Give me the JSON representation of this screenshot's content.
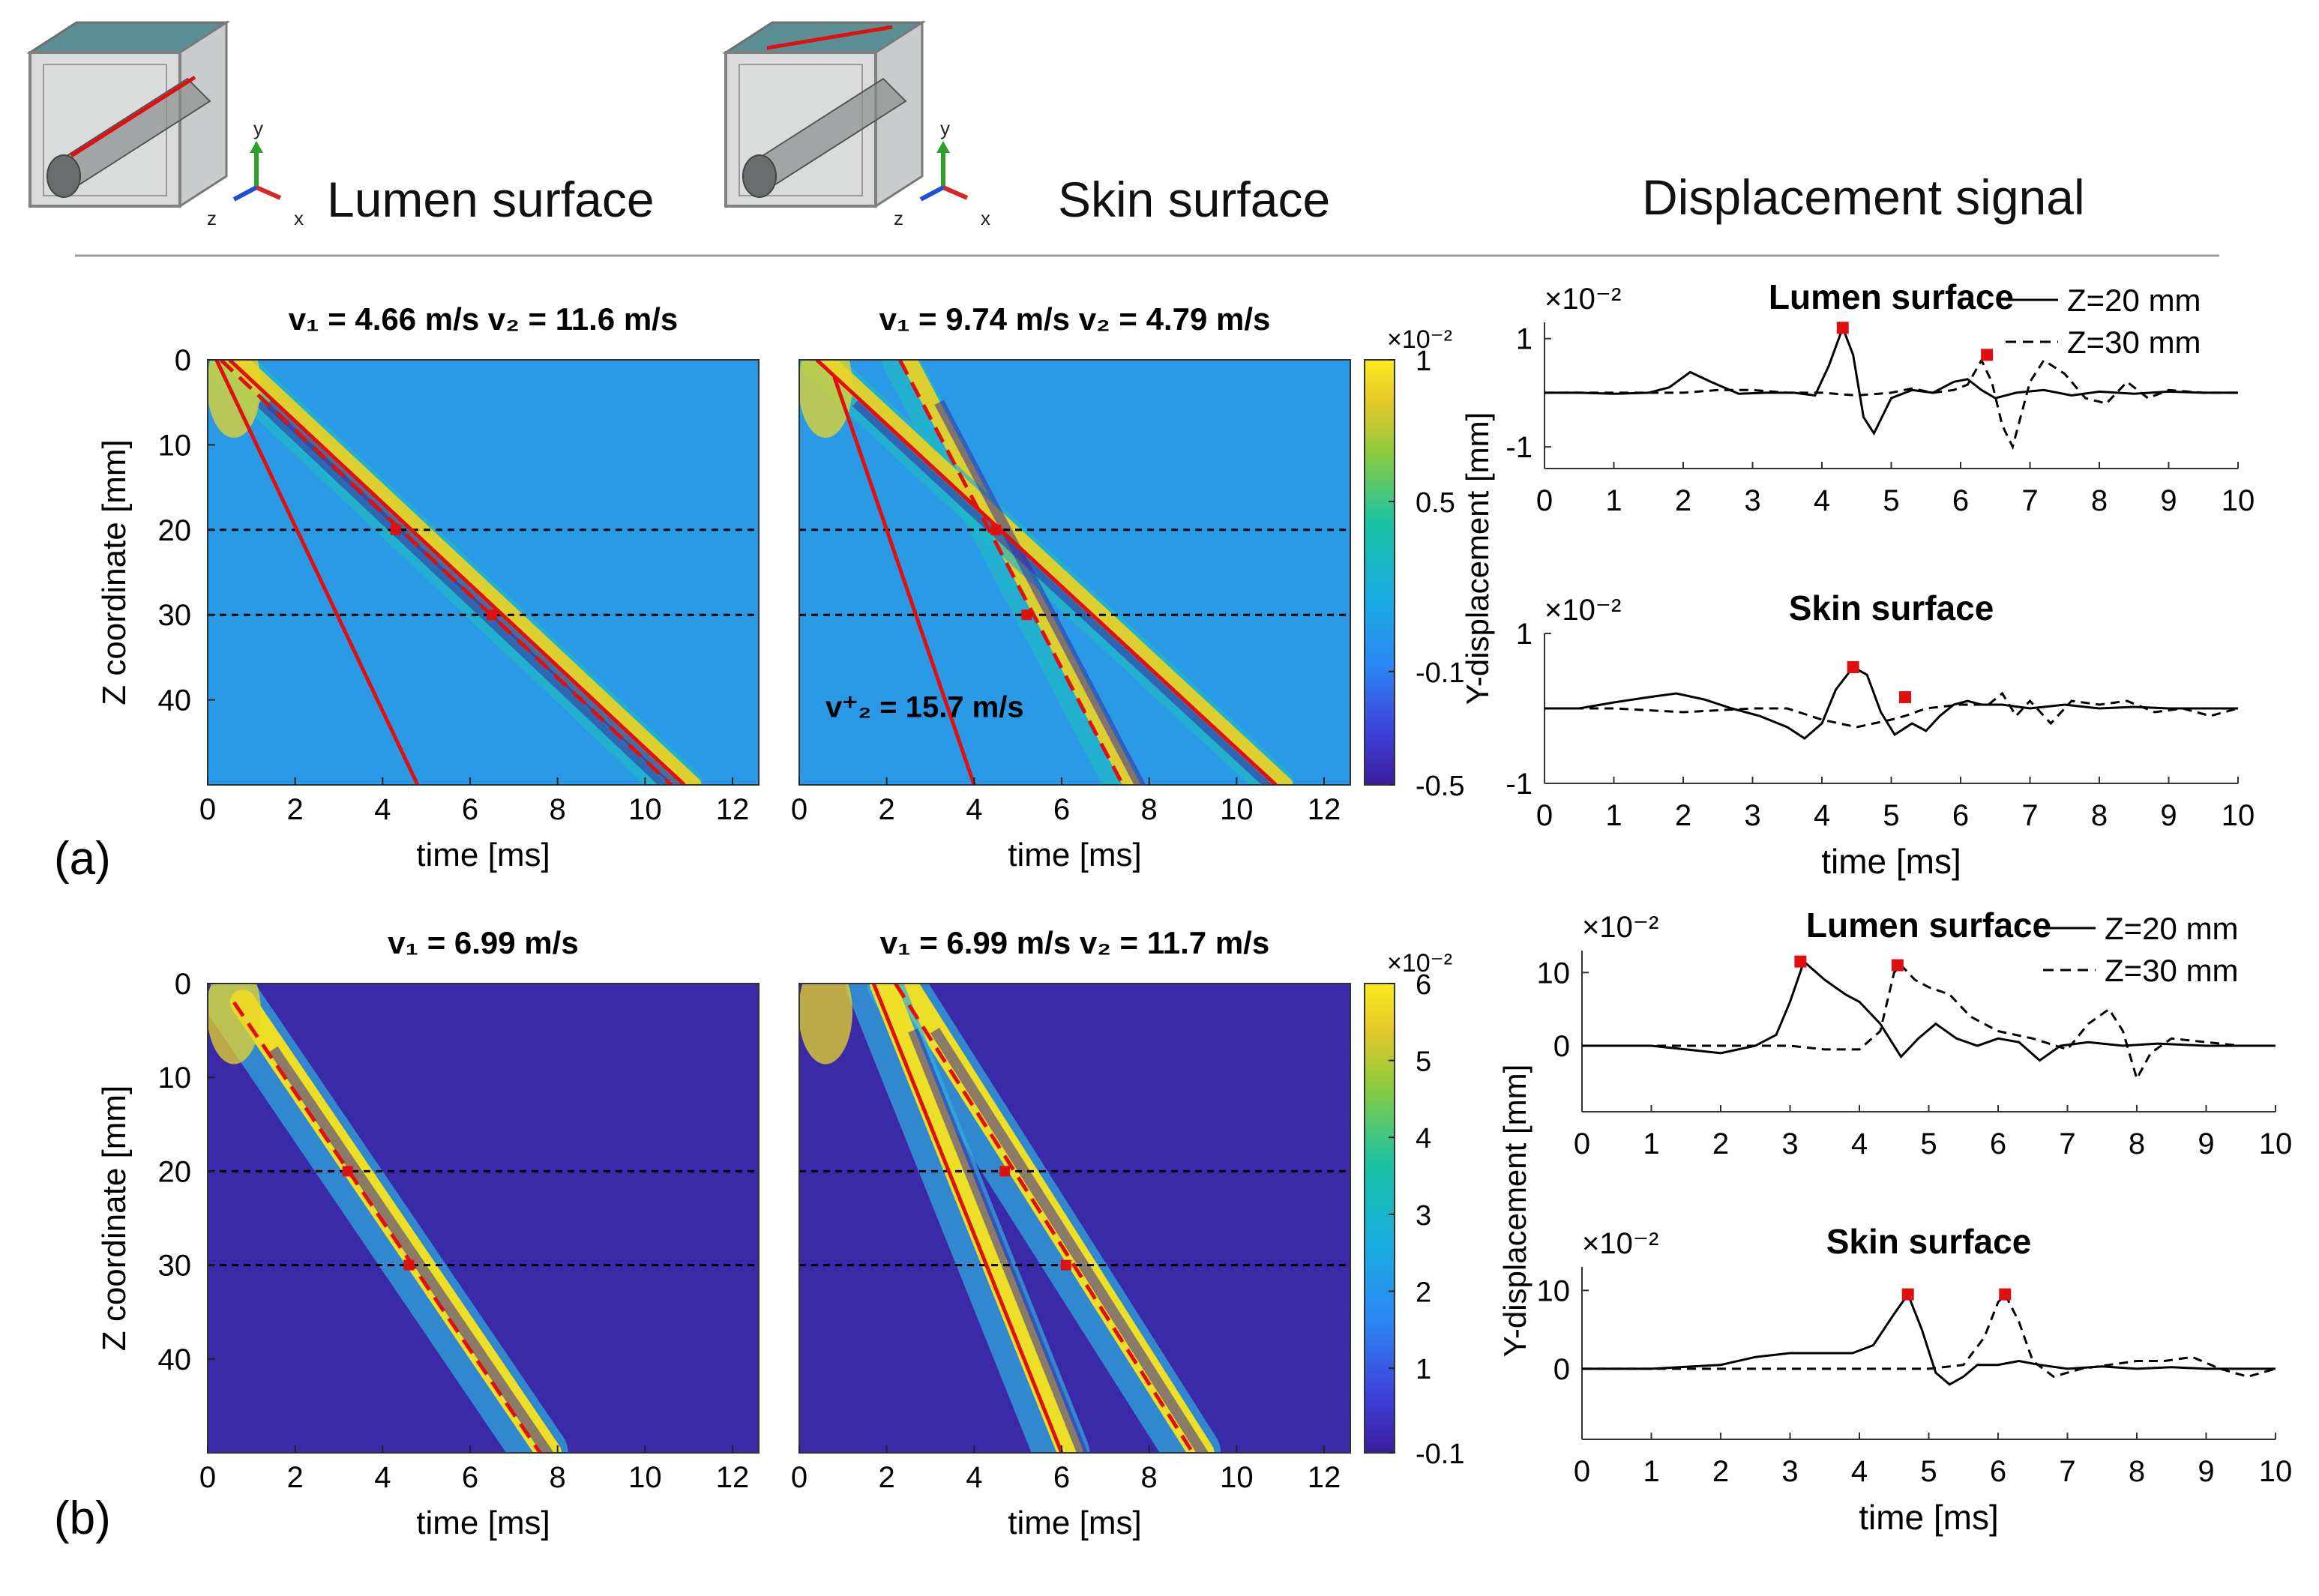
{
  "header": {
    "titles": [
      "Lumen surface",
      "Skin surface",
      "Displacement signal"
    ],
    "axis_letters": [
      "y",
      "z",
      "x"
    ],
    "colors": {
      "x_axis": "#d62728",
      "y_axis": "#2ca02c",
      "z_axis": "#1f4fd6",
      "line": "#e01010"
    }
  },
  "panel_labels": [
    "(a)",
    "(b)"
  ],
  "maps": [
    {
      "id": "a-lumen",
      "title": "v₁ = 4.66 m/s  v₂ = 11.6 m/s",
      "show_y": true,
      "colormap": "a",
      "lines_solid": [
        [
          0.2,
          0,
          4.8,
          50
        ],
        [
          0.5,
          0,
          10.9,
          50
        ]
      ],
      "lines_dashed": [
        [
          0.3,
          0,
          10.6,
          50
        ]
      ],
      "markers": [
        [
          4.3,
          20
        ],
        [
          6.5,
          30
        ]
      ],
      "annotation": ""
    },
    {
      "id": "a-skin",
      "title": "v₁ = 9.74 m/s  v₂ = 4.79 m/s",
      "show_y": false,
      "colormap": "a",
      "lines_solid": [
        [
          0.8,
          2,
          4.0,
          50
        ],
        [
          0.4,
          0,
          10.9,
          50
        ]
      ],
      "lines_dashed": [
        [
          2.3,
          0,
          7.4,
          50
        ]
      ],
      "markers": [
        [
          4.5,
          20
        ],
        [
          5.2,
          30
        ]
      ],
      "annotation": "v⁺₂ = 15.7 m/s"
    },
    {
      "id": "b-lumen",
      "title": "v₁ = 6.99 m/s",
      "show_y": true,
      "colormap": "b",
      "lines_solid": [],
      "lines_dashed": [
        [
          0.6,
          2,
          7.6,
          50
        ]
      ],
      "markers": [
        [
          3.2,
          20
        ],
        [
          4.6,
          30
        ]
      ],
      "annotation": ""
    },
    {
      "id": "b-skin",
      "title": "v₁ = 6.99 m/s  v₂ = 11.7 m/s",
      "show_y": false,
      "colormap": "b",
      "lines_solid": [
        [
          1.7,
          0,
          6.0,
          50
        ]
      ],
      "lines_dashed": [
        [
          2.2,
          0,
          9.0,
          50
        ]
      ],
      "markers": [
        [
          4.7,
          20
        ],
        [
          6.1,
          30
        ]
      ],
      "annotation": ""
    }
  ],
  "map_axes": {
    "xlabel": "time [ms]",
    "ylabel": "Z coordinate [mm]",
    "xticks": [
      0,
      2,
      4,
      6,
      8,
      10,
      12
    ],
    "yticks": [
      0,
      10,
      20,
      30,
      40
    ],
    "xlim": [
      0,
      12.6
    ],
    "ylim": [
      0,
      50
    ],
    "dashed_z": [
      20,
      30
    ]
  },
  "colorbars": [
    {
      "multiplier": "×10⁻²",
      "ticks": [
        {
          "v": 1,
          "t": "1"
        },
        {
          "v": 0.5,
          "t": "0.5"
        },
        {
          "v": -0.1,
          "t": "-0.1"
        },
        {
          "v": -0.5,
          "t": "-0.5"
        }
      ],
      "range": [
        -0.5,
        1
      ],
      "type": "a"
    },
    {
      "multiplier": "×10⁻²",
      "ticks": [
        {
          "v": 6,
          "t": "6"
        },
        {
          "v": 5,
          "t": "5"
        },
        {
          "v": 4,
          "t": "4"
        },
        {
          "v": 3,
          "t": "3"
        },
        {
          "v": 2,
          "t": "2"
        },
        {
          "v": 1,
          "t": "1"
        },
        {
          "v": -0.1,
          "t": "-0.1"
        }
      ],
      "range": [
        -0.1,
        6
      ],
      "type": "b"
    }
  ],
  "chart_data": [
    {
      "type": "line",
      "title": "Lumen surface",
      "multiplier": "×10⁻²",
      "ylabel": "Y-displacement [mm]",
      "xticks": [
        0,
        1,
        2,
        3,
        4,
        5,
        6,
        7,
        8,
        9,
        10
      ],
      "yticks": [
        {
          "v": 1,
          "t": "1"
        },
        {
          "v": -1,
          "t": "-1"
        }
      ],
      "ylim": [
        -1.4,
        1.3
      ],
      "xlabel": "",
      "legend": [
        "Z=20 mm",
        "Z=30 mm"
      ],
      "series": [
        {
          "name": "Z=20 mm",
          "style": "solid",
          "x": [
            0,
            0.5,
            1,
            1.5,
            1.8,
            2.1,
            2.4,
            2.8,
            3.2,
            3.6,
            3.9,
            4.1,
            4.3,
            4.45,
            4.6,
            4.75,
            5,
            5.3,
            5.6,
            5.9,
            6.1,
            6.3,
            6.5,
            6.8,
            7.2,
            7.6,
            8,
            8.5,
            9,
            9.5,
            10
          ],
          "y": [
            0,
            0,
            -0.02,
            0,
            0.1,
            0.38,
            0.2,
            -0.02,
            0,
            0,
            -0.05,
            0.5,
            1.2,
            0.7,
            -0.45,
            -0.75,
            -0.1,
            0.05,
            0,
            0.2,
            0.25,
            0.05,
            -0.1,
            0,
            0.05,
            -0.05,
            0.02,
            -0.02,
            0.02,
            0,
            0
          ]
        },
        {
          "name": "Z=30 mm",
          "style": "dashed",
          "x": [
            0,
            1,
            2,
            2.5,
            3,
            3.5,
            4,
            4.5,
            5,
            5.3,
            5.6,
            5.9,
            6.1,
            6.3,
            6.45,
            6.6,
            6.75,
            7,
            7.2,
            7.5,
            7.8,
            8.1,
            8.4,
            8.7,
            9,
            9.5,
            10
          ],
          "y": [
            0,
            0,
            0,
            0.05,
            0.05,
            0,
            0,
            -0.05,
            0,
            0.08,
            0,
            0.05,
            0.15,
            0.6,
            0.2,
            -0.6,
            -1.0,
            0.2,
            0.6,
            0.35,
            -0.1,
            -0.2,
            0.2,
            -0.1,
            0.05,
            0,
            0
          ]
        }
      ],
      "markers": [
        {
          "x": 4.3,
          "y": 1.2
        },
        {
          "x": 6.38,
          "y": 0.7
        }
      ]
    },
    {
      "type": "line",
      "title": "Skin surface",
      "multiplier": "×10⁻²",
      "ylabel": "",
      "xticks": [
        0,
        1,
        2,
        3,
        4,
        5,
        6,
        7,
        8,
        9,
        10
      ],
      "yticks": [
        {
          "v": 1,
          "t": "1"
        },
        {
          "v": -1,
          "t": "-1"
        }
      ],
      "ylim": [
        -1,
        1
      ],
      "xlabel": "time [ms]",
      "legend": [],
      "series": [
        {
          "name": "Z=20 mm",
          "style": "solid",
          "x": [
            0,
            0.5,
            1,
            1.5,
            1.9,
            2.3,
            2.7,
            3.1,
            3.5,
            3.75,
            4,
            4.2,
            4.45,
            4.65,
            4.85,
            5.05,
            5.3,
            5.5,
            5.7,
            5.9,
            6.1,
            6.3,
            6.6,
            7,
            7.5,
            8,
            8.5,
            9,
            9.5,
            10
          ],
          "y": [
            0,
            0,
            0.08,
            0.15,
            0.2,
            0.12,
            0,
            -0.1,
            -0.25,
            -0.4,
            -0.2,
            0.25,
            0.55,
            0.45,
            -0.05,
            -0.35,
            -0.2,
            -0.3,
            -0.1,
            0.05,
            0.1,
            0.05,
            0.05,
            0,
            0.05,
            0,
            0.02,
            0,
            0,
            0
          ]
        },
        {
          "name": "Z=30 mm",
          "style": "dashed",
          "x": [
            0,
            1,
            2,
            3,
            3.5,
            4,
            4.5,
            5,
            5.2,
            5.5,
            6,
            6.4,
            6.6,
            6.8,
            7,
            7.3,
            7.6,
            8,
            8.4,
            8.8,
            9.2,
            9.6,
            10
          ],
          "y": [
            0,
            0,
            -0.05,
            0,
            0,
            -0.15,
            -0.25,
            -0.15,
            -0.1,
            0,
            0.05,
            0.05,
            0.2,
            -0.1,
            0.1,
            -0.2,
            0.1,
            0.05,
            0.1,
            -0.05,
            0,
            -0.1,
            0
          ]
        }
      ],
      "markers": [
        {
          "x": 4.45,
          "y": 0.55
        },
        {
          "x": 5.2,
          "y": 0.15
        }
      ]
    },
    {
      "type": "line",
      "title": "Lumen surface",
      "multiplier": "×10⁻²",
      "ylabel": "Y-displacement [mm]",
      "xticks": [
        0,
        1,
        2,
        3,
        4,
        5,
        6,
        7,
        8,
        9,
        10
      ],
      "yticks": [
        {
          "v": 10,
          "t": "10"
        },
        {
          "v": 0,
          "t": "0"
        }
      ],
      "ylim": [
        -9,
        13
      ],
      "xlabel": "",
      "legend": [
        "Z=20 mm",
        "Z=30 mm"
      ],
      "series": [
        {
          "name": "Z=20 mm",
          "style": "solid",
          "x": [
            0,
            1,
            1.5,
            2,
            2.5,
            2.8,
            3,
            3.2,
            3.5,
            3.8,
            4,
            4.3,
            4.6,
            4.85,
            5.1,
            5.4,
            5.7,
            6,
            6.3,
            6.6,
            6.9,
            7.3,
            7.8,
            8.3,
            9,
            9.5,
            10
          ],
          "y": [
            0,
            0,
            -0.5,
            -1,
            0,
            1.5,
            6,
            11.5,
            9,
            7,
            6,
            3,
            -1.5,
            1,
            3,
            1,
            0,
            1,
            0.5,
            -2,
            0,
            0.5,
            0,
            0.3,
            0,
            0,
            0
          ]
        },
        {
          "name": "Z=30 mm",
          "style": "dashed",
          "x": [
            0,
            1,
            2,
            3,
            3.5,
            4,
            4.3,
            4.5,
            4.6,
            4.8,
            5,
            5.3,
            5.6,
            6,
            6.5,
            7,
            7.3,
            7.6,
            7.8,
            8,
            8.2,
            8.5,
            9,
            9.5,
            10
          ],
          "y": [
            0,
            0,
            0,
            0,
            -0.5,
            -0.5,
            2,
            10,
            11,
            9,
            8,
            7,
            4,
            2,
            1,
            -0.5,
            3,
            5,
            2,
            -4.5,
            -1,
            1,
            0.5,
            0,
            0
          ]
        }
      ],
      "markers": [
        {
          "x": 3.15,
          "y": 11.5
        },
        {
          "x": 4.55,
          "y": 11
        }
      ]
    },
    {
      "type": "line",
      "title": "Skin surface",
      "multiplier": "×10⁻²",
      "ylabel": "",
      "xticks": [
        0,
        1,
        2,
        3,
        4,
        5,
        6,
        7,
        8,
        9,
        10
      ],
      "yticks": [
        {
          "v": 10,
          "t": "10"
        },
        {
          "v": 0,
          "t": "0"
        }
      ],
      "ylim": [
        -9,
        13
      ],
      "xlabel": "time [ms]",
      "legend": [],
      "series": [
        {
          "name": "Z=20 mm",
          "style": "solid",
          "x": [
            0,
            1,
            2,
            2.5,
            3,
            3.5,
            3.9,
            4.2,
            4.5,
            4.7,
            4.9,
            5.1,
            5.3,
            5.5,
            5.7,
            6,
            6.3,
            6.6,
            7,
            7.5,
            8,
            8.5,
            9,
            9.5,
            10
          ],
          "y": [
            0,
            0,
            0.5,
            1.5,
            2,
            2,
            2,
            3,
            7,
            9.5,
            5,
            -0.5,
            -2,
            -1,
            0.5,
            0.5,
            1,
            0.5,
            0,
            0.3,
            0,
            0.2,
            0,
            0,
            0
          ]
        },
        {
          "name": "Z=30 mm",
          "style": "dashed",
          "x": [
            0,
            1,
            2,
            3,
            4,
            4.5,
            5,
            5.5,
            5.8,
            6,
            6.1,
            6.3,
            6.5,
            6.8,
            7.2,
            7.6,
            8,
            8.4,
            8.8,
            9.2,
            9.6,
            10
          ],
          "y": [
            0,
            0,
            0,
            0,
            0,
            0,
            0,
            0.5,
            4,
            8.5,
            9.5,
            6,
            1,
            -1,
            0,
            0.5,
            1,
            1,
            1.5,
            0,
            -1,
            0
          ]
        }
      ],
      "markers": [
        {
          "x": 4.7,
          "y": 9.5
        },
        {
          "x": 6.1,
          "y": 9.5
        }
      ]
    }
  ]
}
